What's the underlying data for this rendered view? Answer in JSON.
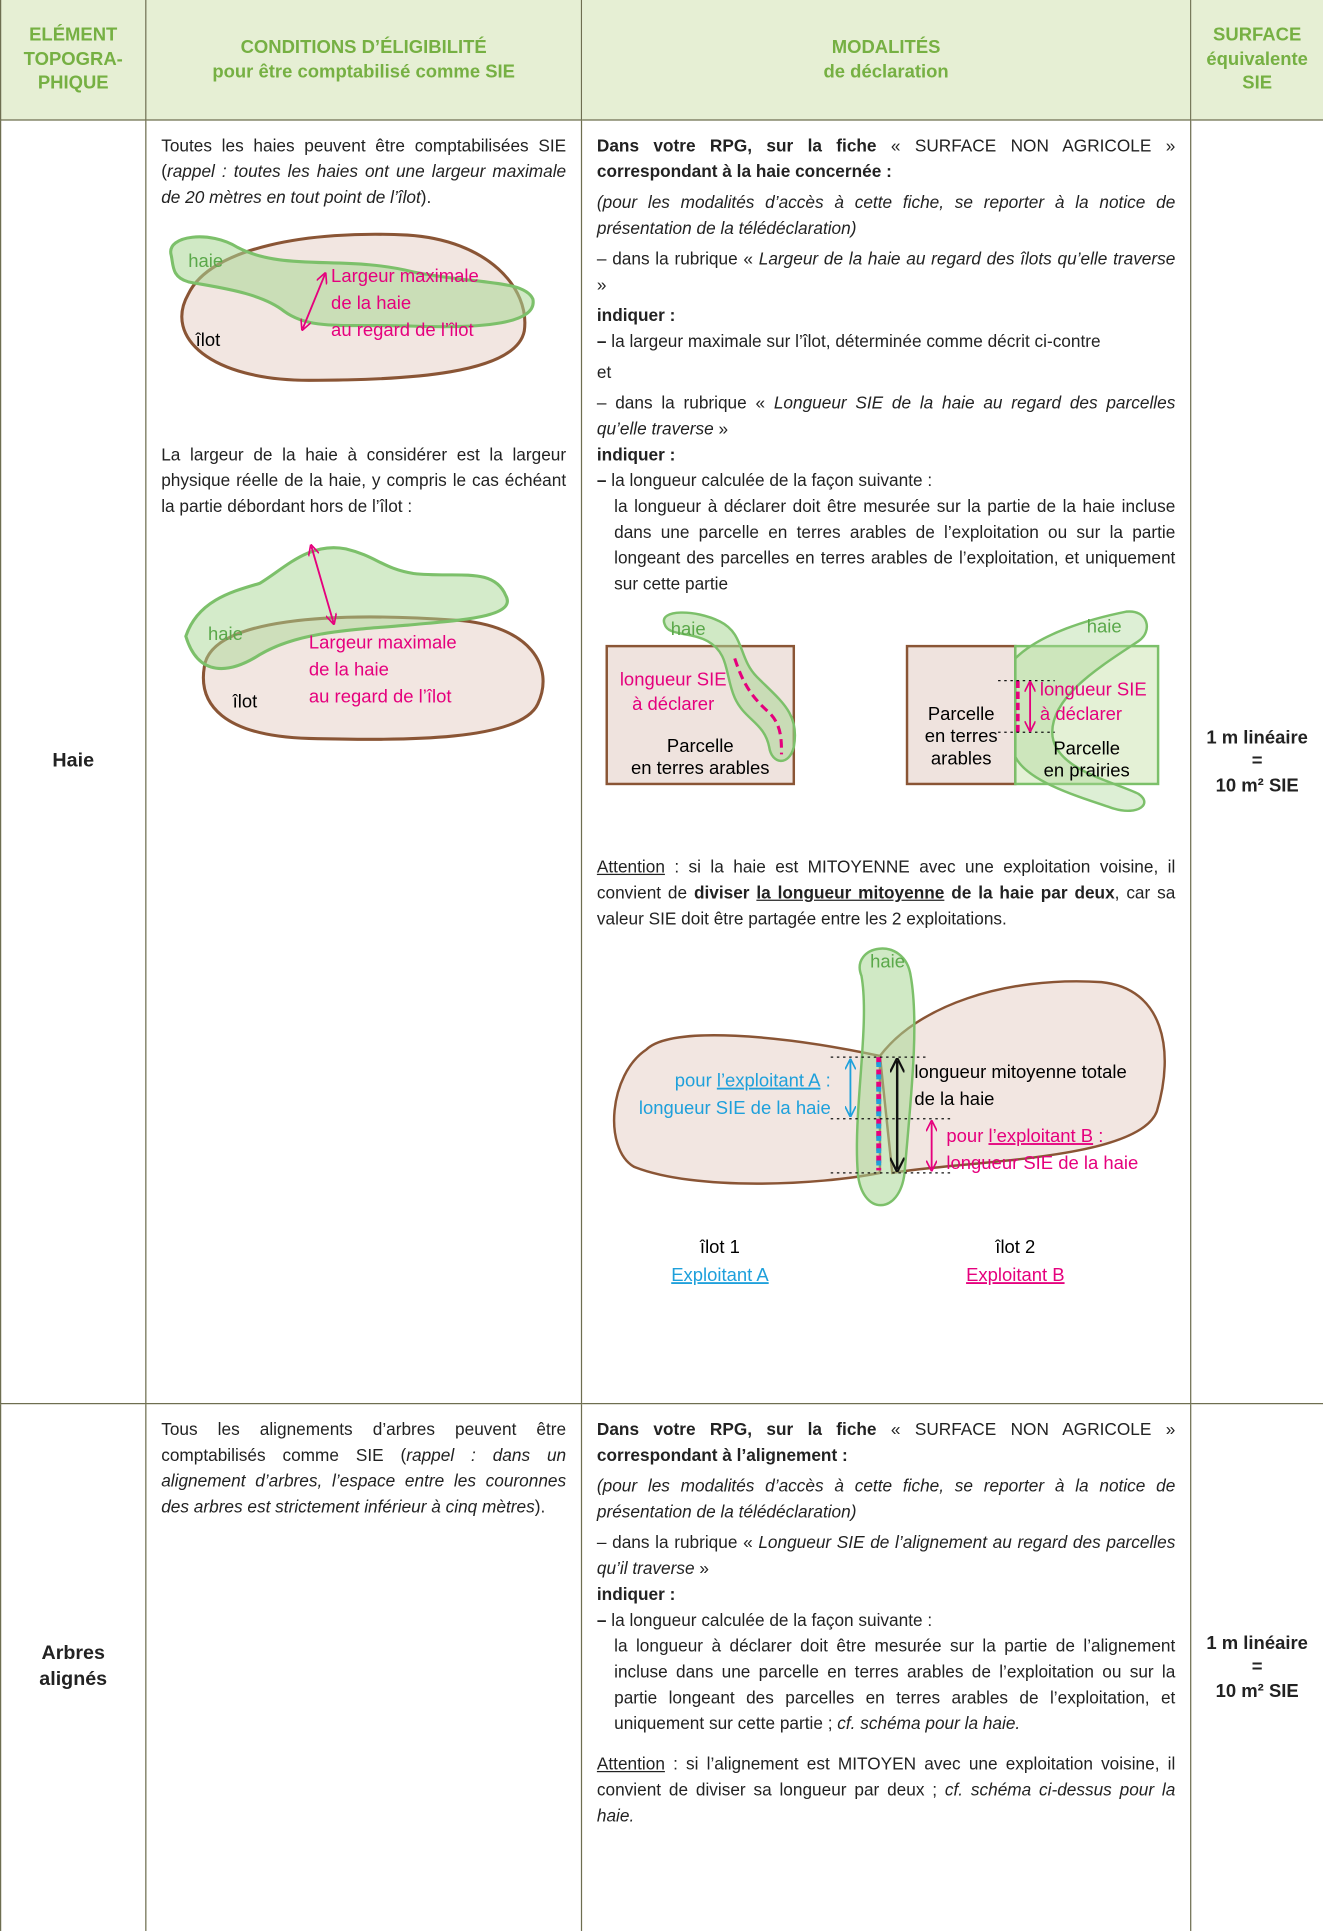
{
  "header": {
    "element": [
      "ELÉMENT",
      "TOPOGRA-",
      "PHIQUE"
    ],
    "conditions": [
      "CONDITIONS D’ÉLIGIBILITÉ",
      "pour être comptabilisé comme SIE"
    ],
    "modalites": [
      "MODALITÉS",
      "de déclaration"
    ],
    "surface": [
      "SURFACE",
      "équivalente",
      "SIE"
    ]
  },
  "haie": {
    "element": "Haie",
    "conditions": {
      "p1": [
        "Toutes les haies peuvent être comptabilisées SIE (",
        "rappel : toutes les haies ont une largeur maximale de 20 mètres en tout point de l’îlot",
        "). "
      ],
      "diagram1": {
        "haie": "haie",
        "label": [
          "Largeur maximale",
          "de la haie",
          "au regard de l’îlot"
        ],
        "ilot": "îlot"
      },
      "p2": "La largeur de la haie à considérer est la largeur physique réelle de la haie, y compris le cas échéant la partie débordant hors de l’îlot :",
      "diagram2": {
        "haie": "haie",
        "label": [
          "Largeur maximale",
          "de la haie",
          "au regard de l’îlot"
        ],
        "ilot": "îlot"
      }
    },
    "modalites": {
      "intro": [
        "Dans votre RPG, sur la fiche",
        " « SURFACE NON AGRICOLE » ",
        "correspondant à la haie concernée :"
      ],
      "note": "(pour les modalités d’accès à cette fiche, se reporter à la notice de présentation de la télédéclaration)",
      "item1": [
        "– dans la rubrique « ",
        "Largeur de la haie au regard des îlots qu’elle traverse",
        " »"
      ],
      "indiquer1": "indiquer :",
      "item2": [
        "–",
        " la largeur maximale sur l’îlot, déterminée comme décrit ci-contre"
      ],
      "et": "et",
      "item3": [
        "– dans la rubrique « ",
        "Longueur SIE de la haie au regard des parcelles qu’elle traverse",
        " »"
      ],
      "indiquer2": "indiquer :",
      "item4": [
        "–",
        " la longueur calculée de la façon suivante :"
      ],
      "item4b": "la longueur à déclarer doit être mesurée sur la partie de la haie incluse dans une parcelle en terres arables de l’exploitation ou sur la partie longeant des parcelles en terres arables de l’exploitation, et uniquement sur cette partie",
      "diagram3": {
        "haie": "haie",
        "longueur": [
          "longueur SIE",
          "à déclarer"
        ],
        "parcelle": [
          "Parcelle",
          "en terres arables"
        ]
      },
      "diagram4": {
        "haie": "haie",
        "parcelle1": [
          "Parcelle",
          "en terres",
          "arables"
        ],
        "longueur": [
          "longueur SIE",
          "à déclarer"
        ],
        "parcelle2": [
          "Parcelle",
          "en prairies"
        ]
      },
      "attention": [
        "Attention",
        " : si la haie est MITOYENNE avec une exploitation voisine, il convient de ",
        "diviser ",
        "la longueur mitoyenne",
        " de la haie par deux",
        ", car sa valeur SIE doit être partagée entre les 2 exploitations."
      ],
      "diagram5": {
        "haie": "haie",
        "a1": "pour ",
        "a2": "l’exploitant A",
        "a3": " :",
        "a4": "longueur SIE de la haie",
        "total": [
          "longueur mitoyenne totale",
          "de la haie"
        ],
        "b1": "pour ",
        "b2": "l’exploitant B",
        "b3": " :",
        "b4": "longueur SIE de la haie",
        "ilot1": "îlot 1",
        "expA": "Exploitant A",
        "ilot2": "îlot 2",
        "expB": "Exploitant B"
      }
    },
    "surface": [
      "1 m linéaire",
      "=",
      "10 m² SIE"
    ]
  },
  "arbres": {
    "element": [
      "Arbres",
      "alignés"
    ],
    "conditions": [
      "Tous les alignements d’arbres peuvent être comptabilisés comme SIE (",
      "rappel : dans un alignement d’arbres, l’espace entre les couronnes des arbres est strictement inférieur à cinq mètres",
      ")."
    ],
    "modalites": {
      "intro": [
        "Dans votre RPG, sur la fiche",
        " « SURFACE NON AGRICOLE » ",
        "correspondant à l’alignement :"
      ],
      "note": "(pour les modalités d’accès à cette fiche, se reporter à la notice de présentation de la télédéclaration)",
      "item1": [
        "– dans la rubrique « ",
        "Longueur SIE de l’alignement au regard des parcelles qu’il traverse",
        " »"
      ],
      "indiquer": "indiquer :",
      "item2": [
        "–",
        " la longueur calculée de la façon suivante :"
      ],
      "item2b": [
        "la longueur à déclarer doit être mesurée sur la partie de l’alignement incluse dans une parcelle en terres arables de l’exploitation ou sur la partie longeant des parcelles en terres arables de l’exploitation, et uniquement sur cette partie ; ",
        "cf. schéma pour la haie."
      ],
      "attention": [
        "Attention",
        " : si l’alignement est MITOYEN avec une exploitation voisine, il convient de diviser sa longueur par deux ; ",
        "cf. schéma ci-dessus pour la haie."
      ]
    },
    "surface": [
      "1 m linéaire",
      "=",
      "10 m² SIE"
    ]
  }
}
